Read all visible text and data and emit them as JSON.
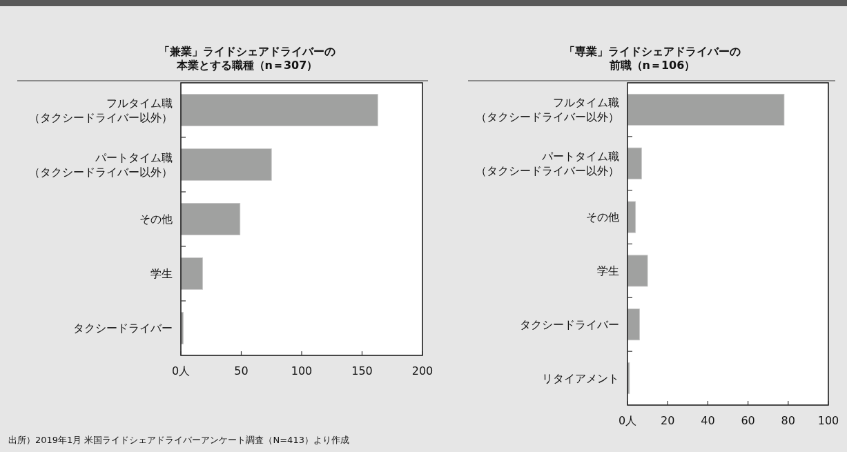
{
  "chart_data": [
    {
      "type": "bar",
      "orientation": "horizontal",
      "title": "「兼業」ライドシェアドライバーの本業とする職種（n＝307）",
      "categories": [
        "フルタイム職（タクシードライバー以外）",
        "パートタイム職（タクシードライバー以外）",
        "その他",
        "学生",
        "タクシードライバー"
      ],
      "values": [
        163,
        75,
        49,
        18,
        2
      ],
      "color": "#a0a1a0",
      "xlim": [
        0,
        200
      ],
      "xticks": [
        {
          "value": 0,
          "label": "0人"
        },
        50,
        100,
        150,
        200
      ]
    },
    {
      "type": "bar",
      "orientation": "horizontal",
      "title": "「専業」ライドシェアドライバーの前職（n＝106）",
      "categories": [
        "フルタイム職（タクシードライバー以外）",
        "パートタイム職（タクシードライバー以外）",
        "その他",
        "学生",
        "タクシードライバー",
        "リタイアメント"
      ],
      "values": [
        78,
        7,
        4,
        10,
        6,
        1
      ],
      "color": "#a0a1a0",
      "xlim": [
        0,
        100
      ],
      "xticks": [
        {
          "value": 0,
          "label": "0人"
        },
        20,
        40,
        60,
        80,
        100
      ],
      "annotations": [
        "出所）2019年1月 米国ライドシェアドライバーアンケート調査（N=413）より作成"
      ]
    }
  ]
}
